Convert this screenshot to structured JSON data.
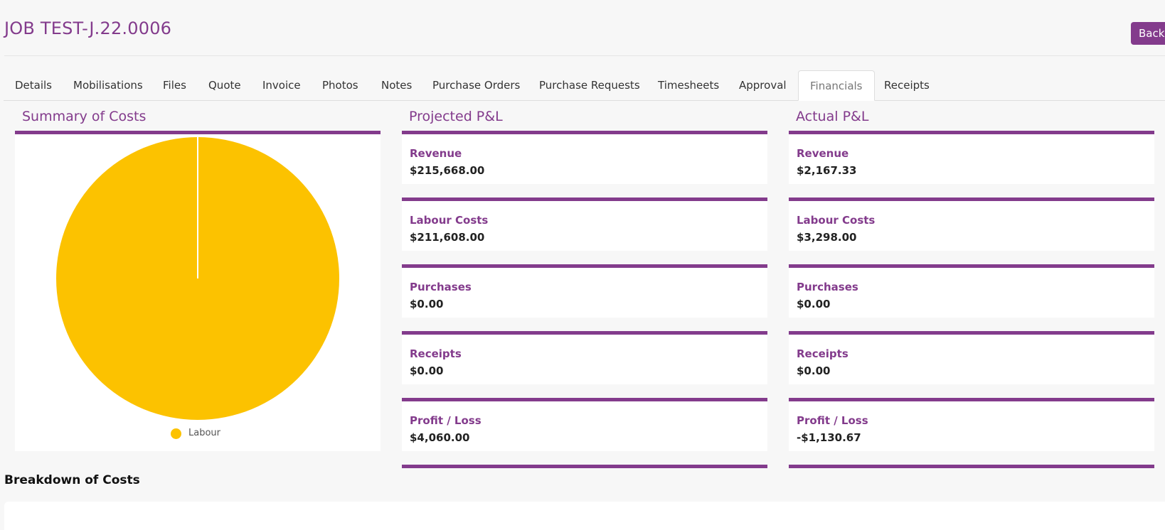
{
  "header": {
    "title": "JOB TEST-J.22.0006",
    "back_label": "Back"
  },
  "tabs": [
    {
      "label": "Details",
      "active": false
    },
    {
      "label": "Mobilisations",
      "active": false
    },
    {
      "label": "Files",
      "active": false
    },
    {
      "label": "Quote",
      "active": false
    },
    {
      "label": "Invoice",
      "active": false
    },
    {
      "label": "Photos",
      "active": false
    },
    {
      "label": "Notes",
      "active": false
    },
    {
      "label": "Purchase Orders",
      "active": false
    },
    {
      "label": "Purchase Requests",
      "active": false
    },
    {
      "label": "Timesheets",
      "active": false
    },
    {
      "label": "Approval",
      "active": false
    },
    {
      "label": "Financials",
      "active": true
    },
    {
      "label": "Receipts",
      "active": false
    }
  ],
  "summary": {
    "title": "Summary of Costs"
  },
  "chart_data": {
    "type": "pie",
    "categories": [
      "Labour"
    ],
    "values": [
      100
    ],
    "colors": [
      "#fcc200"
    ],
    "legend": "bottom"
  },
  "projected": {
    "title": "Projected P&L",
    "cards": [
      {
        "label": "Revenue",
        "value": "$215,668.00"
      },
      {
        "label": "Labour Costs",
        "value": "$211,608.00"
      },
      {
        "label": "Purchases",
        "value": "$0.00"
      },
      {
        "label": "Receipts",
        "value": "$0.00"
      },
      {
        "label": "Profit / Loss",
        "value": "$4,060.00"
      }
    ]
  },
  "actual": {
    "title": "Actual P&L",
    "cards": [
      {
        "label": "Revenue",
        "value": "$2,167.33"
      },
      {
        "label": "Labour Costs",
        "value": "$3,298.00"
      },
      {
        "label": "Purchases",
        "value": "$0.00"
      },
      {
        "label": "Receipts",
        "value": "$0.00"
      },
      {
        "label": "Profit / Loss",
        "value": "-$1,130.67"
      }
    ]
  },
  "breakdown": {
    "title": "Breakdown of Costs"
  },
  "colors": {
    "accent": "#833b8c",
    "labour": "#fcc200"
  }
}
